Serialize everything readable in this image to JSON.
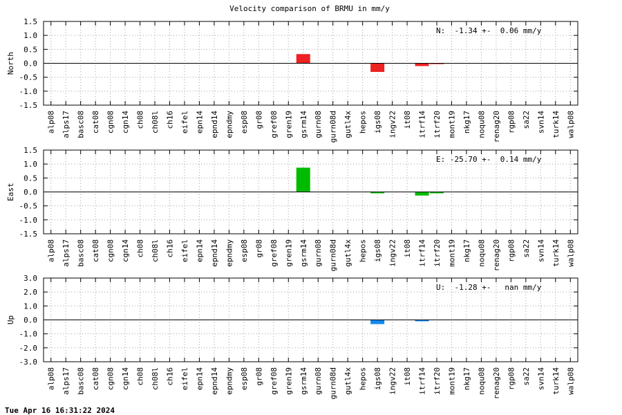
{
  "title": "Velocity comparison of BRMU in mm/y",
  "footer": "Tue Apr 16 16:31:22 2024",
  "categories": [
    "alp08",
    "alps17",
    "basc08",
    "cat08",
    "cgn08",
    "cgn14",
    "ch08",
    "ch08l",
    "ch16",
    "eifel",
    "epn14",
    "epnd14",
    "epndmy",
    "esp08",
    "gr08",
    "gref08",
    "gren19",
    "gsrm14",
    "gurn08",
    "gurn08d",
    "gutl4x",
    "hepos",
    "igs08",
    "ingv22",
    "it08",
    "itrf14",
    "itrf20",
    "mont19",
    "nkg17",
    "noqu08",
    "renag20",
    "rgp08",
    "sa22",
    "svn14",
    "turk14",
    "walp08"
  ],
  "chart_data": [
    {
      "type": "bar",
      "ylabel": "North",
      "ylim": [
        -1.5,
        1.5
      ],
      "yticks": [
        -1.5,
        -1.0,
        -0.5,
        0.0,
        0.5,
        1.0,
        1.5
      ],
      "tick_labels": [
        "-1.5",
        "-1.0",
        "-0.5",
        "0.0",
        "0.5",
        "1.0",
        "1.5"
      ],
      "annotation": "N:  -1.34 +-  0.06 mm/y",
      "color": "#ee2222",
      "grid": true,
      "values": [
        0,
        0,
        0,
        0,
        0,
        0,
        0,
        0,
        0,
        0,
        0,
        0,
        0,
        0,
        0,
        0,
        0,
        0.33,
        0,
        0,
        0,
        0,
        -0.31,
        0,
        0,
        -0.1,
        -0.03,
        0,
        0,
        0,
        0,
        0,
        0,
        0,
        0,
        0
      ]
    },
    {
      "type": "bar",
      "ylabel": "East",
      "ylim": [
        -1.5,
        1.5
      ],
      "yticks": [
        -1.5,
        -1.0,
        -0.5,
        0.0,
        0.5,
        1.0,
        1.5
      ],
      "tick_labels": [
        "-1.5",
        "-1.0",
        "-0.5",
        "0.0",
        "0.5",
        "1.0",
        "1.5"
      ],
      "annotation": "E: -25.70 +-  0.14 mm/y",
      "color": "#00bb00",
      "grid": true,
      "values": [
        0,
        0,
        0,
        0,
        0,
        0,
        0,
        0,
        0,
        0,
        0,
        0,
        0,
        0,
        0,
        0,
        0,
        0.87,
        0,
        0,
        0,
        0,
        -0.05,
        0,
        0,
        -0.13,
        -0.05,
        0,
        0,
        0,
        0,
        0,
        0,
        0,
        0,
        0
      ]
    },
    {
      "type": "bar",
      "ylabel": "Up",
      "ylim": [
        -3.0,
        3.0
      ],
      "yticks": [
        -3.0,
        -2.0,
        -1.0,
        0.0,
        1.0,
        2.0,
        3.0
      ],
      "tick_labels": [
        "-3.0",
        "-2.0",
        "-1.0",
        "0.0",
        "1.0",
        "2.0",
        "3.0"
      ],
      "annotation": "U:  -1.28 +-   nan mm/y",
      "color": "#1188ee",
      "grid": true,
      "values": [
        0,
        0,
        0,
        0,
        0,
        0,
        0,
        0,
        0,
        0,
        0,
        0,
        0,
        0,
        0,
        0,
        0,
        0,
        0,
        0,
        0,
        0,
        -0.3,
        0,
        0,
        -0.1,
        0,
        0,
        0,
        0,
        0,
        0,
        0,
        0,
        0,
        0
      ]
    }
  ]
}
